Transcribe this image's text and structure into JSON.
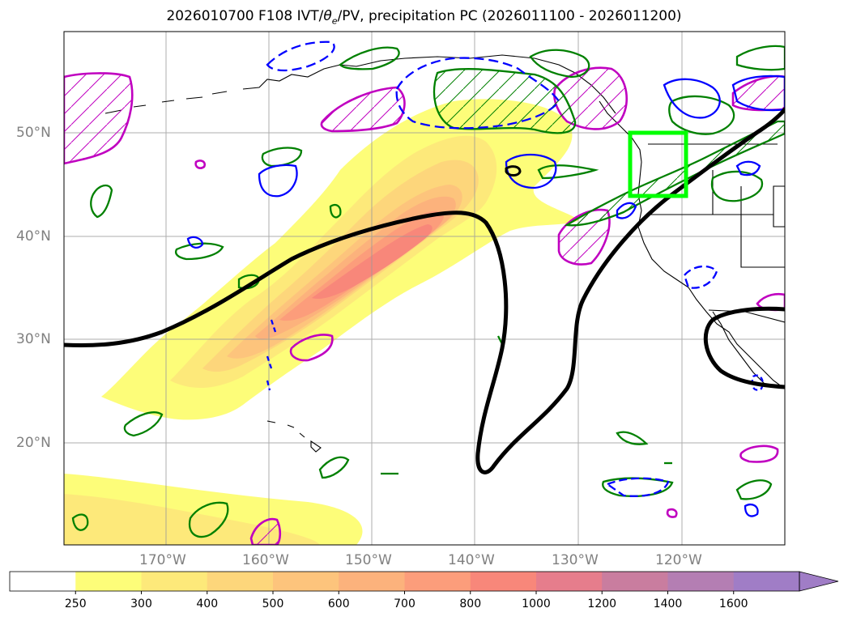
{
  "title": {
    "prefix": "2026010700 F108 IVT/",
    "theta": "θ",
    "theta_sub": "e",
    "suffix": "/PV, precipitation PC (2026011100 - 2026011200)"
  },
  "map": {
    "lon_labels": [
      "170°W",
      "160°W",
      "150°W",
      "140°W",
      "130°W",
      "120°W"
    ],
    "lat_labels": [
      "50°N",
      "40°N",
      "30°N",
      "20°N"
    ],
    "gridlines": true,
    "highlight_box_color": "#00ff00",
    "ivt_contour_color": "#000000",
    "contour_colors": {
      "green": "#008000",
      "blue": "#0000ff",
      "magenta": "#c000c0",
      "coastline": "#000000"
    }
  },
  "colorbar": {
    "levels": [
      "250",
      "300",
      "400",
      "500",
      "600",
      "700",
      "800",
      "1000",
      "1200",
      "1400",
      "1600"
    ],
    "colors": [
      "#ffffff",
      "#fdfd79",
      "#fde97a",
      "#fdd67b",
      "#fdc47c",
      "#fcb27c",
      "#fc9d7b",
      "#f8877a",
      "#e67d8c",
      "#c97d9f",
      "#b47eb3",
      "#a07dc6"
    ],
    "extend": "max"
  }
}
